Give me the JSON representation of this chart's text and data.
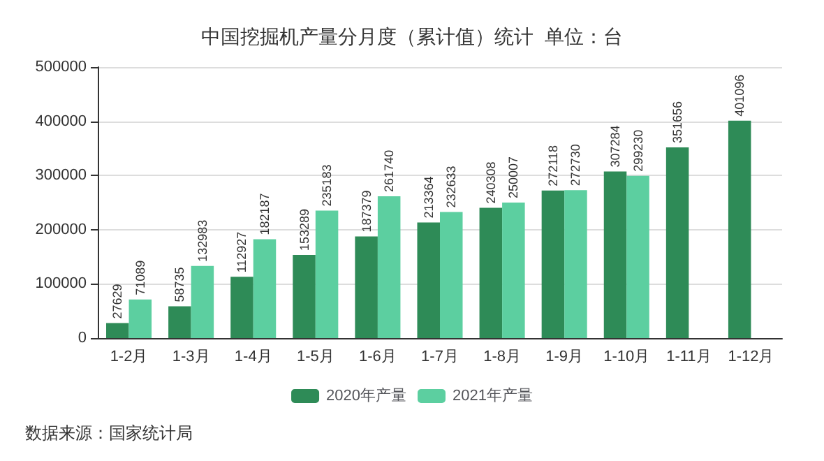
{
  "chart_data": {
    "type": "bar",
    "title": "中国挖掘机产量分月度（累计值）统计  单位：台",
    "categories": [
      "1-2月",
      "1-3月",
      "1-4月",
      "1-5月",
      "1-6月",
      "1-7月",
      "1-8月",
      "1-9月",
      "1-10月",
      "1-11月",
      "1-12月"
    ],
    "series": [
      {
        "name": "2020年产量",
        "color": "#2e8b57",
        "values": [
          27629,
          58735,
          112927,
          153289,
          187379,
          213364,
          240308,
          272118,
          307284,
          351656,
          401096
        ]
      },
      {
        "name": "2021年产量",
        "color": "#5ccfa0",
        "values": [
          71089,
          132983,
          182187,
          235183,
          261740,
          232633,
          250007,
          272730,
          299230,
          null,
          null
        ]
      }
    ],
    "ylim": [
      0,
      500000
    ],
    "yticks": [
      0,
      100000,
      200000,
      300000,
      400000,
      500000
    ],
    "grid": "y",
    "legend": "bottom",
    "data_labels": true,
    "annotations": [
      "数据来源：国家统计局"
    ]
  }
}
